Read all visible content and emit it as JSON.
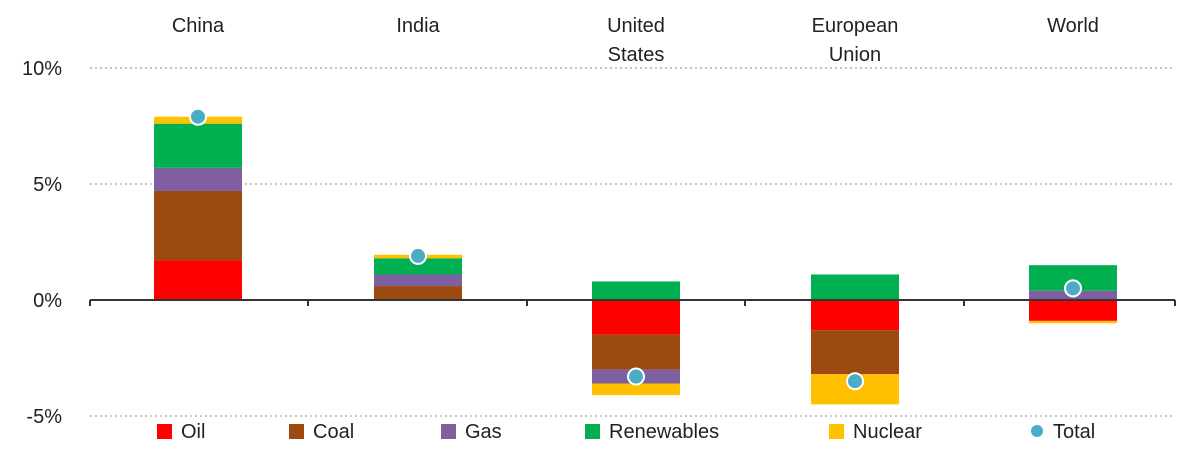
{
  "chart_data": {
    "type": "bar",
    "stacked": true,
    "categories": [
      [
        "China"
      ],
      [
        "India"
      ],
      [
        "United",
        "States"
      ],
      [
        "European",
        "Union"
      ],
      [
        "World"
      ]
    ],
    "series": [
      {
        "name": "Oil",
        "color": "#ff0000",
        "values": [
          1.7,
          0.0,
          -1.5,
          -1.3,
          -0.9
        ]
      },
      {
        "name": "Coal",
        "color": "#9c4a10",
        "values": [
          3.0,
          0.6,
          -1.5,
          -1.9,
          0.0
        ]
      },
      {
        "name": "Gas",
        "color": "#7f5fa0",
        "values": [
          1.0,
          0.5,
          -0.6,
          0.0,
          0.4
        ]
      },
      {
        "name": "Renewables",
        "color": "#00b050",
        "values": [
          1.9,
          0.7,
          0.8,
          1.1,
          1.1
        ]
      },
      {
        "name": "Nuclear",
        "color": "#ffc000",
        "values": [
          0.3,
          0.15,
          -0.5,
          -1.3,
          -0.1
        ]
      }
    ],
    "total": {
      "name": "Total",
      "color": "#4bacc6",
      "values": [
        7.9,
        1.9,
        -3.3,
        -3.5,
        0.5
      ]
    },
    "yticks": [
      {
        "value": 10,
        "label": "10%"
      },
      {
        "value": 5,
        "label": "5%"
      },
      {
        "value": 0,
        "label": "0%"
      },
      {
        "value": -5,
        "label": "-5%"
      }
    ],
    "ylim": [
      -5,
      10
    ],
    "grid": true,
    "legend_position": "bottom"
  }
}
